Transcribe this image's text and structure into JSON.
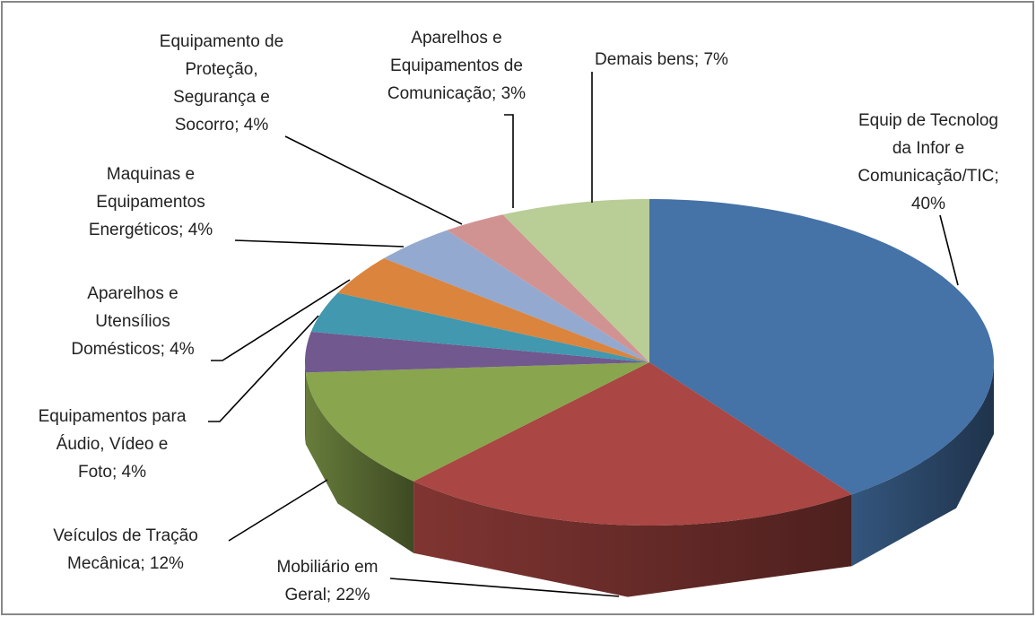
{
  "chart_data": {
    "type": "pie",
    "labels": [
      "Equip de Tecnolog\nda Infor e\nComunicação/TIC;\n40%",
      "Mobiliário em\nGeral; 22%",
      "Veículos de Tração\nMecânica; 12%",
      "Equipamentos para\nÁudio, Vídeo e\nFoto; 4%",
      "Aparelhos e\nUtensílios\nDomésticos; 4%",
      "Maquinas e\nEquipamentos\nEnergéticos; 4%",
      "Equipamento de\nProteção,\nSegurança e\nSocorro; 4%",
      "Aparelhos e\nEquipamentos de\nComunicação; 3%",
      "Demais bens; 7%"
    ],
    "values": [
      40,
      22,
      12,
      4,
      4,
      4,
      4,
      3,
      7
    ],
    "colors": [
      "#4572a7",
      "#aa4643",
      "#89a54e",
      "#71588f",
      "#4198af",
      "#db843d",
      "#93a9cf",
      "#d19392",
      "#b9cd96"
    ]
  }
}
